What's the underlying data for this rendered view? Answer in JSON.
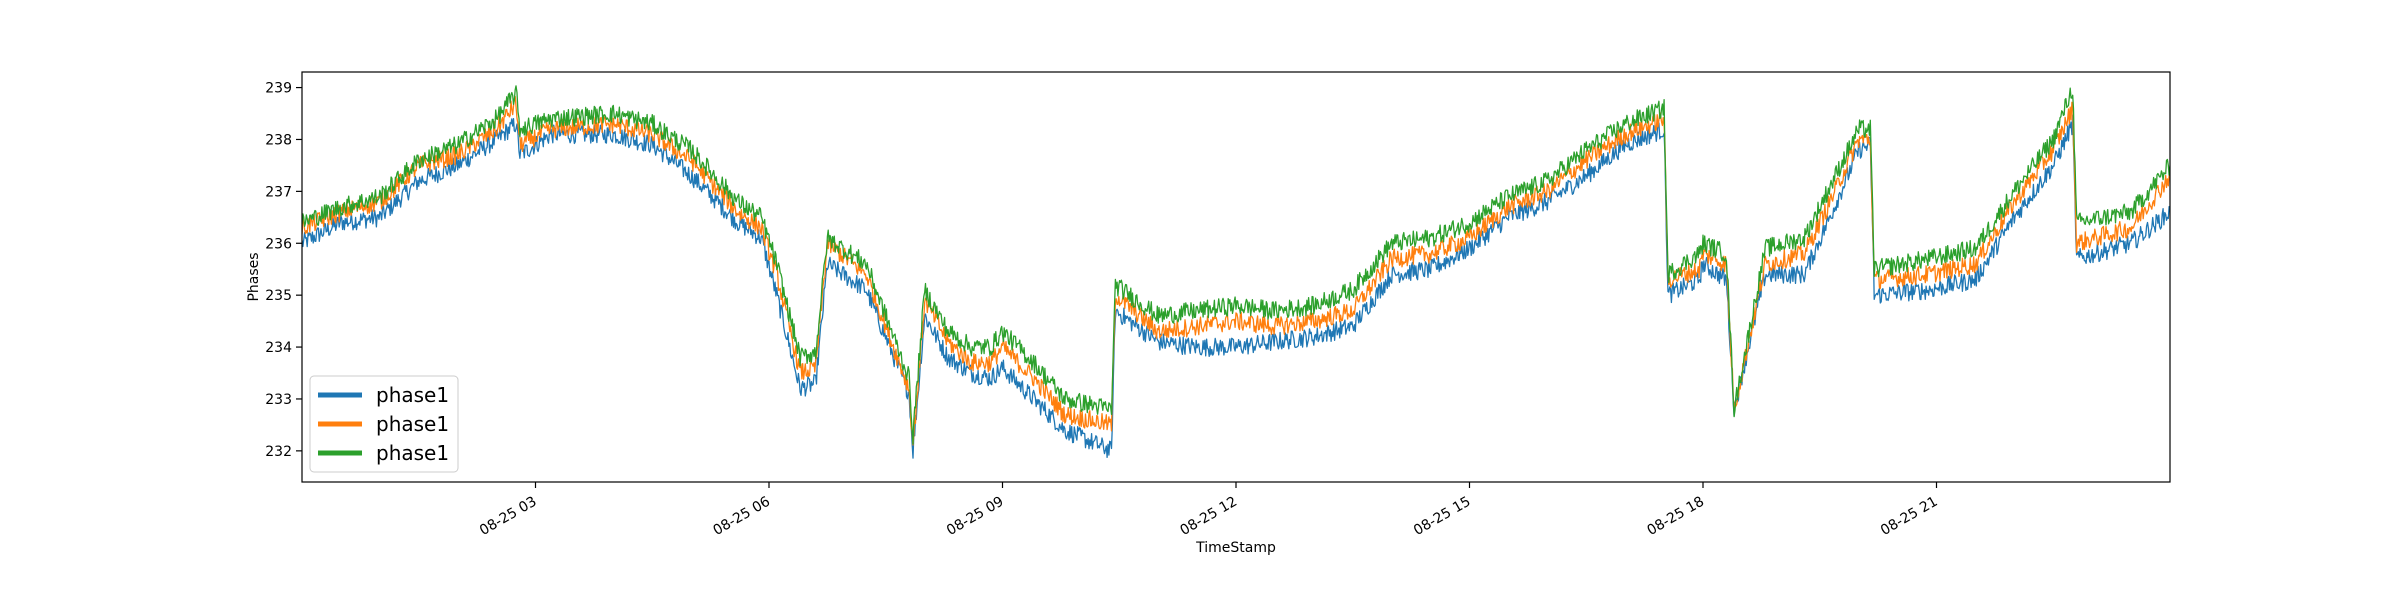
{
  "chart_data": {
    "type": "line",
    "title": "",
    "xlabel": "TimeStamp",
    "ylabel": "Phases",
    "ylim": [
      231.4,
      239.3
    ],
    "x_ticks": [
      {
        "hour": 3,
        "label": "08-25 03"
      },
      {
        "hour": 6,
        "label": "08-25 06"
      },
      {
        "hour": 9,
        "label": "08-25 09"
      },
      {
        "hour": 12,
        "label": "08-25 12"
      },
      {
        "hour": 15,
        "label": "08-25 15"
      },
      {
        "hour": 18,
        "label": "08-25 18"
      },
      {
        "hour": 21,
        "label": "08-25 21"
      }
    ],
    "y_ticks": [
      232,
      233,
      234,
      235,
      236,
      237,
      238,
      239
    ],
    "legend_position": "lower-left",
    "grid": false,
    "x_hours": [
      0.0,
      0.5,
      1.0,
      1.5,
      2.0,
      2.5,
      2.75,
      2.8,
      3.2,
      4.0,
      4.5,
      5.0,
      5.6,
      5.9,
      6.1,
      6.4,
      6.6,
      6.75,
      7.25,
      7.8,
      7.85,
      8.0,
      8.3,
      8.6,
      8.85,
      9.0,
      9.4,
      9.8,
      10.4,
      10.45,
      11.0,
      11.5,
      12.0,
      12.5,
      13.0,
      13.5,
      14.0,
      14.5,
      15.0,
      15.5,
      16.0,
      16.5,
      17.0,
      17.5,
      17.55,
      17.95,
      18.0,
      18.3,
      18.4,
      18.8,
      19.3,
      19.6,
      20.0,
      20.15,
      20.2,
      20.9,
      21.5,
      22.0,
      22.5,
      22.75,
      22.8,
      23.5,
      24.0
    ],
    "series": [
      {
        "name": "phase1",
        "color": "#1f77b4",
        "values": [
          236.0,
          236.4,
          236.5,
          237.2,
          237.5,
          238.0,
          238.3,
          237.7,
          238.1,
          238.1,
          237.9,
          237.3,
          236.4,
          236.1,
          235.0,
          233.2,
          233.3,
          235.6,
          235.1,
          233.1,
          232.0,
          234.6,
          233.8,
          233.5,
          233.4,
          233.6,
          233.0,
          232.4,
          232.0,
          234.7,
          234.1,
          234.0,
          234.0,
          234.1,
          234.2,
          234.4,
          235.4,
          235.5,
          235.9,
          236.5,
          236.8,
          237.3,
          237.9,
          238.2,
          235.0,
          235.3,
          235.6,
          235.3,
          232.8,
          235.4,
          235.4,
          236.4,
          237.8,
          237.9,
          235.0,
          235.1,
          235.3,
          236.5,
          237.5,
          238.3,
          235.7,
          236.0,
          236.6
        ]
      },
      {
        "name": "phase1",
        "color": "#ff7f0e",
        "values": [
          236.3,
          236.6,
          236.8,
          237.5,
          237.7,
          238.2,
          238.7,
          237.9,
          238.2,
          238.3,
          238.1,
          237.6,
          236.6,
          236.3,
          235.4,
          233.5,
          233.6,
          236.0,
          235.4,
          233.2,
          232.1,
          234.9,
          234.1,
          233.7,
          233.7,
          234.0,
          233.4,
          232.7,
          232.5,
          235.0,
          234.3,
          234.4,
          234.5,
          234.4,
          234.5,
          234.7,
          235.7,
          235.8,
          236.1,
          236.7,
          237.0,
          237.6,
          238.1,
          238.4,
          235.3,
          235.5,
          235.8,
          235.6,
          232.8,
          235.6,
          235.8,
          236.7,
          238.0,
          238.0,
          235.3,
          235.4,
          235.6,
          236.8,
          237.8,
          238.6,
          236.0,
          236.3,
          237.3
        ]
      },
      {
        "name": "phase1",
        "color": "#2ca02c",
        "values": [
          236.4,
          236.7,
          236.9,
          237.6,
          237.9,
          238.4,
          238.9,
          238.2,
          238.4,
          238.5,
          238.3,
          237.8,
          236.8,
          236.5,
          235.6,
          233.8,
          233.9,
          236.1,
          235.6,
          233.4,
          232.3,
          235.1,
          234.3,
          234.0,
          234.0,
          234.3,
          233.7,
          233.0,
          232.8,
          235.2,
          234.6,
          234.7,
          234.8,
          234.7,
          234.8,
          235.1,
          236.0,
          236.1,
          236.4,
          236.9,
          237.2,
          237.8,
          238.3,
          238.6,
          235.4,
          235.8,
          236.0,
          235.8,
          232.8,
          235.9,
          236.1,
          237.0,
          238.2,
          238.2,
          235.5,
          235.7,
          235.9,
          237.0,
          238.0,
          239.0,
          236.4,
          236.6,
          237.5
        ]
      }
    ]
  }
}
